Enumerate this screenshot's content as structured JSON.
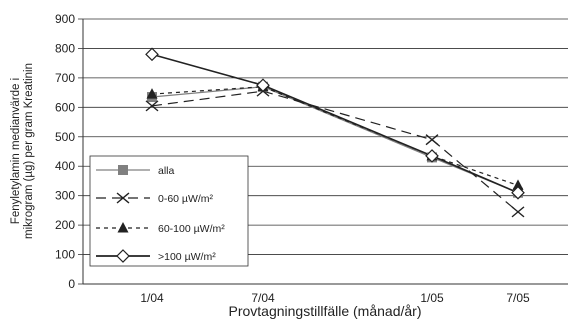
{
  "chart_data": {
    "type": "line",
    "title": "",
    "xlabel": "Provtagningstillfälle (månad/år)",
    "ylabel_lines": [
      "Fenyletylamin medianvärde i",
      "mikrogram (µg) per gram Kreatinin"
    ],
    "categories": [
      "1/04",
      "7/04",
      "1/05",
      "7/05"
    ],
    "ylim": [
      0,
      900
    ],
    "yticks": [
      0,
      100,
      200,
      300,
      400,
      500,
      600,
      700,
      800,
      900
    ],
    "grid": true,
    "legend_position": "bottom-left",
    "series": [
      {
        "name": "alla",
        "values": [
          635,
          670,
          430,
          310
        ],
        "marker": "square",
        "dash": "solid",
        "color": "#808080"
      },
      {
        "name": "0-60 µW/m²",
        "values": [
          605,
          655,
          490,
          245
        ],
        "marker": "x",
        "dash": "long-dash",
        "color": "#222222"
      },
      {
        "name": "60-100 µW/m²",
        "values": [
          645,
          670,
          435,
          335
        ],
        "marker": "triangle",
        "dash": "short-dash",
        "color": "#222222"
      },
      {
        "name": ">100 µW/m²",
        "values": [
          780,
          675,
          435,
          310
        ],
        "marker": "diamond",
        "dash": "solid",
        "color": "#222222"
      }
    ]
  }
}
